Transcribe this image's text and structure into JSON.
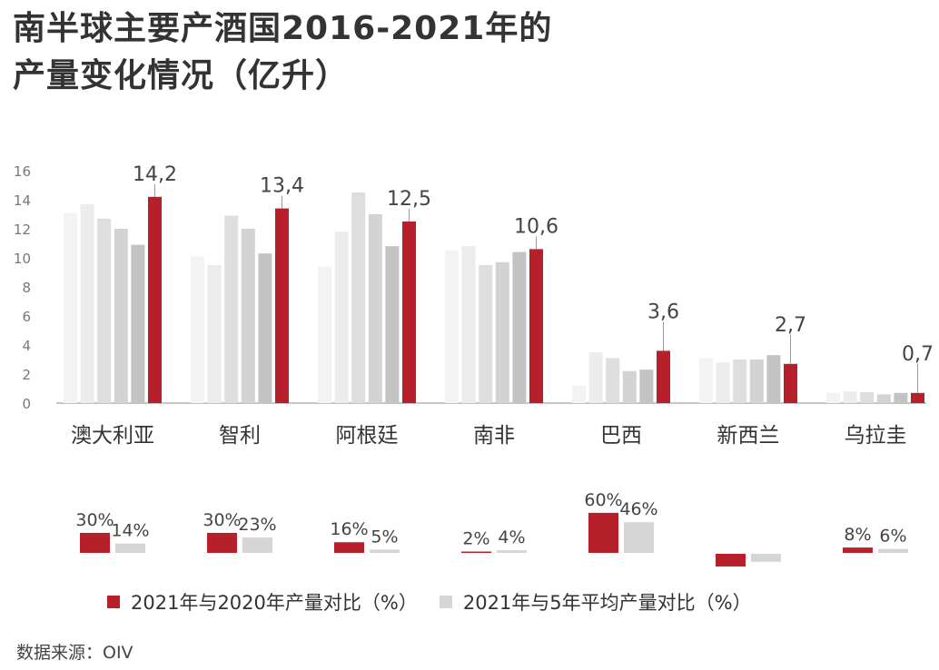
{
  "title": {
    "line1": "南半球主要产酒国2016-2021年的",
    "line2": "产量变化情况（亿升）"
  },
  "source": "数据来源：OIV",
  "legend": {
    "yoy": "2021年与2020年产量对比（%）",
    "avg": "2021年与5年平均产量对比（%）"
  },
  "colors": {
    "red": "#b5202a",
    "grays": [
      "#f3f3f3",
      "#ececec",
      "#dedede",
      "#d3d3d3",
      "#c3c3c3",
      "#a8a8a8"
    ],
    "avg_bar": "#d5d5d5",
    "axis": "#888888"
  },
  "chart_data": [
    {
      "type": "bar",
      "title": "",
      "categories": [
        "澳大利亚",
        "智利",
        "阿根廷",
        "南非",
        "巴西",
        "新西兰",
        "乌拉圭"
      ],
      "series": [
        {
          "values": [
            13.1,
            10.1,
            9.4,
            10.5,
            1.2,
            3.1,
            0.7
          ]
        },
        {
          "values": [
            13.7,
            9.5,
            11.8,
            10.8,
            3.5,
            2.8,
            0.8
          ]
        },
        {
          "values": [
            12.7,
            12.9,
            14.5,
            9.5,
            3.1,
            3.0,
            0.75
          ]
        },
        {
          "values": [
            12.0,
            12.0,
            13.0,
            9.7,
            2.2,
            3.0,
            0.6
          ]
        },
        {
          "values": [
            10.9,
            10.3,
            10.8,
            10.4,
            2.3,
            3.3,
            0.7
          ]
        },
        {
          "values": [
            14.2,
            13.4,
            12.5,
            10.6,
            3.6,
            2.7,
            0.7
          ]
        }
      ],
      "highlight_labels": [
        "14,2",
        "13,4",
        "12,5",
        "10,6",
        "3,6",
        "2,7",
        "0,7"
      ],
      "y_ticks": [
        "0",
        "2",
        "4",
        "6",
        "8",
        "10",
        "12",
        "14",
        "16"
      ],
      "ylim": [
        0,
        16
      ]
    },
    {
      "type": "bar",
      "categories": [
        "澳大利亚",
        "智利",
        "阿根廷",
        "南非",
        "巴西",
        "新西兰",
        "乌拉圭"
      ],
      "series": [
        {
          "name": "2021年与2020年产量对比（%）",
          "values": [
            30,
            30,
            16,
            2,
            60,
            -19,
            8
          ],
          "labels": [
            "30%",
            "30%",
            "16%",
            "2%",
            "60%",
            "",
            "8%"
          ]
        },
        {
          "name": "2021年与5年平均产量对比（%）",
          "values": [
            14,
            23,
            5,
            4,
            46,
            -12,
            6
          ],
          "labels": [
            "14%",
            "23%",
            "5%",
            "4%",
            "46%",
            "",
            "6%"
          ]
        }
      ]
    }
  ]
}
